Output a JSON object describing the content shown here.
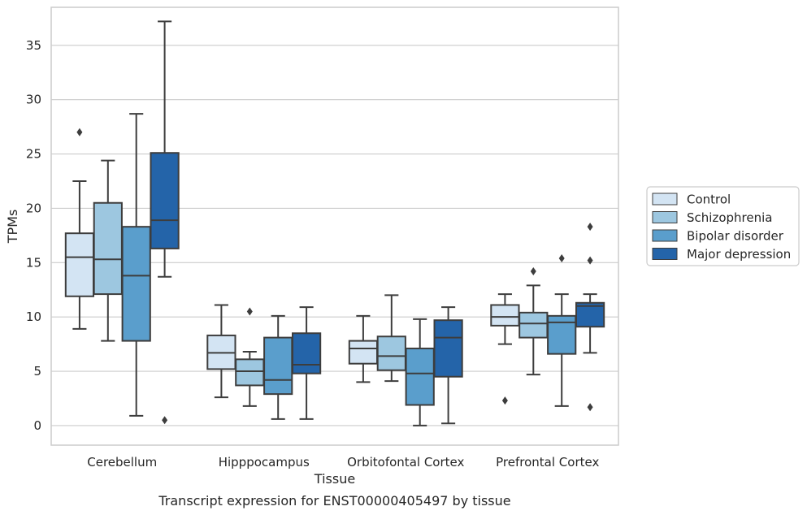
{
  "chart_data": {
    "type": "boxplot",
    "title": "",
    "caption": "Transcript expression for ENST00000405497 by tissue",
    "xlabel": "Tissue",
    "ylabel": "TPMs",
    "ylim": [
      -1.8,
      38.5
    ],
    "yticks": [
      0,
      5,
      10,
      15,
      20,
      25,
      30,
      35
    ],
    "grid": "horizontal",
    "legend_placement": "right",
    "categories": [
      "Cerebellum",
      "Hipppocampus",
      "Orbitofontal Cortex",
      "Prefrontal Cortex"
    ],
    "series": [
      {
        "name": "Control",
        "color": "#d3e4f3",
        "boxes": [
          {
            "whislo": 8.9,
            "q1": 11.9,
            "med": 15.5,
            "q3": 17.7,
            "whishi": 22.5,
            "fliers": [
              27.0
            ]
          },
          {
            "whislo": 2.6,
            "q1": 5.2,
            "med": 6.7,
            "q3": 8.3,
            "whishi": 11.1,
            "fliers": []
          },
          {
            "whislo": 4.0,
            "q1": 5.7,
            "med": 7.1,
            "q3": 7.8,
            "whishi": 10.1,
            "fliers": []
          },
          {
            "whislo": 7.5,
            "q1": 9.2,
            "med": 10.0,
            "q3": 11.1,
            "whishi": 12.1,
            "fliers": [
              2.3
            ]
          }
        ]
      },
      {
        "name": "Schizophrenia",
        "color": "#9dc7e0",
        "boxes": [
          {
            "whislo": 7.8,
            "q1": 12.1,
            "med": 15.3,
            "q3": 20.5,
            "whishi": 24.4,
            "fliers": []
          },
          {
            "whislo": 1.8,
            "q1": 3.7,
            "med": 5.0,
            "q3": 6.1,
            "whishi": 6.8,
            "fliers": [
              10.5
            ]
          },
          {
            "whislo": 4.1,
            "q1": 5.1,
            "med": 6.4,
            "q3": 8.2,
            "whishi": 12.0,
            "fliers": []
          },
          {
            "whislo": 4.7,
            "q1": 8.1,
            "med": 9.4,
            "q3": 10.4,
            "whishi": 12.9,
            "fliers": [
              14.2
            ]
          }
        ]
      },
      {
        "name": "Bipolar disorder",
        "color": "#5a9ecc",
        "boxes": [
          {
            "whislo": 0.9,
            "q1": 7.8,
            "med": 13.8,
            "q3": 18.3,
            "whishi": 28.7,
            "fliers": []
          },
          {
            "whislo": 0.6,
            "q1": 2.9,
            "med": 4.2,
            "q3": 8.1,
            "whishi": 10.1,
            "fliers": []
          },
          {
            "whislo": 0.0,
            "q1": 1.9,
            "med": 4.8,
            "q3": 7.1,
            "whishi": 9.8,
            "fliers": []
          },
          {
            "whislo": 1.8,
            "q1": 6.6,
            "med": 9.5,
            "q3": 10.1,
            "whishi": 12.1,
            "fliers": [
              15.4
            ]
          }
        ]
      },
      {
        "name": "Major depression",
        "color": "#2464a9",
        "boxes": [
          {
            "whislo": 13.7,
            "q1": 16.3,
            "med": 18.9,
            "q3": 25.1,
            "whishi": 37.2,
            "fliers": [
              0.5
            ]
          },
          {
            "whislo": 0.6,
            "q1": 4.8,
            "med": 5.6,
            "q3": 8.5,
            "whishi": 10.9,
            "fliers": []
          },
          {
            "whislo": 0.2,
            "q1": 4.5,
            "med": 8.1,
            "q3": 9.7,
            "whishi": 10.9,
            "fliers": []
          },
          {
            "whislo": 6.7,
            "q1": 9.1,
            "med": 11.0,
            "q3": 11.3,
            "whishi": 12.1,
            "fliers": [
              18.3,
              15.2,
              1.7
            ]
          }
        ]
      }
    ]
  }
}
